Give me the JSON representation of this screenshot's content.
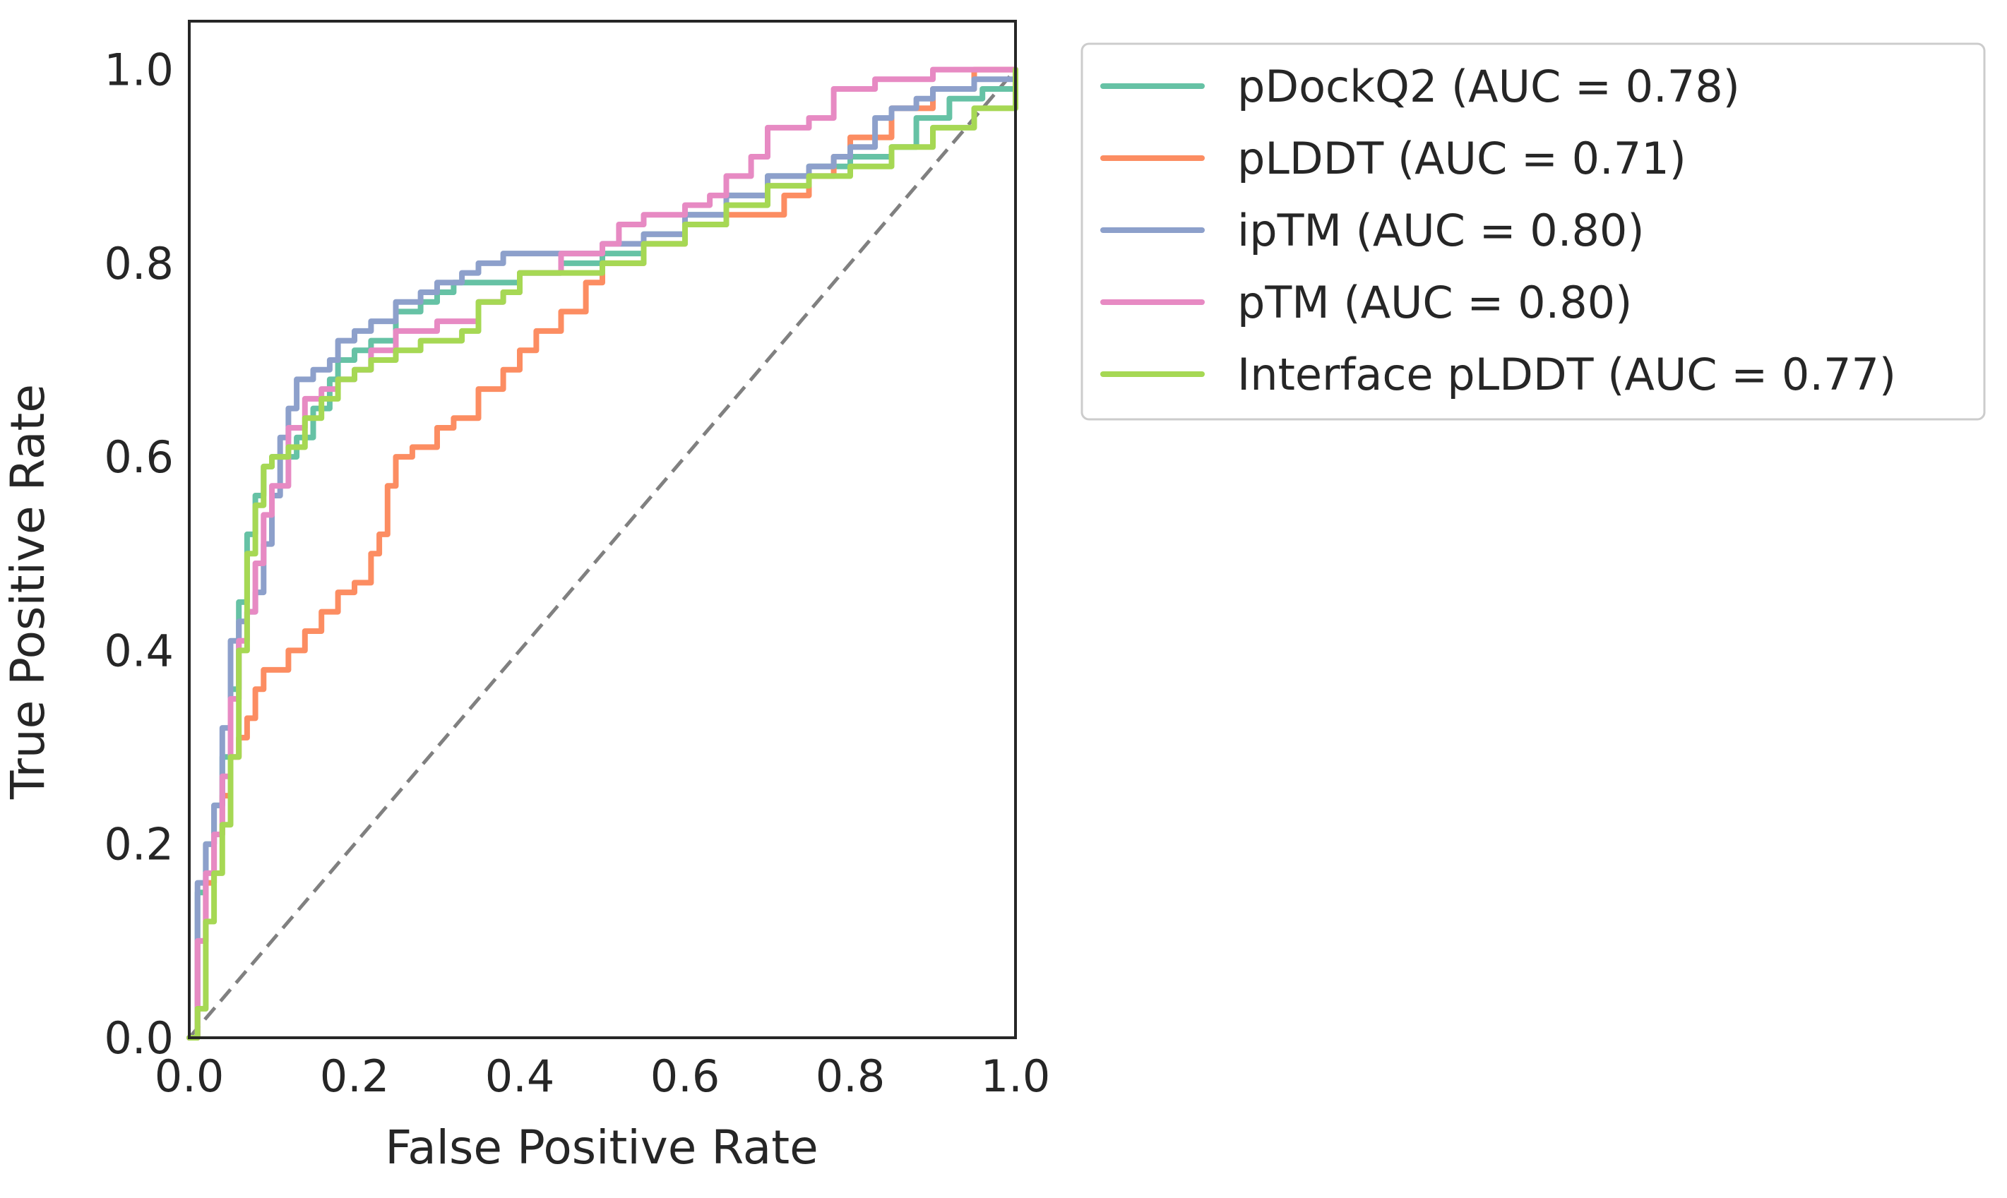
{
  "chart_data": {
    "type": "line",
    "title": "",
    "xlabel": "False Positive Rate",
    "ylabel": "True Positive Rate",
    "xlim": [
      0.0,
      1.0
    ],
    "ylim": [
      0.0,
      1.05
    ],
    "xticks": [
      "0.0",
      "0.2",
      "0.4",
      "0.6",
      "0.8",
      "1.0"
    ],
    "yticks": [
      "0.0",
      "0.2",
      "0.4",
      "0.6",
      "0.8",
      "1.0"
    ],
    "grid": false,
    "legend_position": "outside-top-right",
    "reference_line": {
      "style": "dashed",
      "color": "#808080",
      "x": [
        0.0,
        1.0
      ],
      "y": [
        0.0,
        1.0
      ]
    },
    "series": [
      {
        "name": "pDockQ2 (AUC = 0.78)",
        "color": "#66c2a5",
        "x": [
          0.0,
          0.01,
          0.02,
          0.03,
          0.04,
          0.05,
          0.06,
          0.07,
          0.08,
          0.09,
          0.1,
          0.12,
          0.13,
          0.15,
          0.17,
          0.18,
          0.2,
          0.22,
          0.25,
          0.28,
          0.3,
          0.32,
          0.35,
          0.4,
          0.45,
          0.5,
          0.55,
          0.6,
          0.65,
          0.7,
          0.75,
          0.8,
          0.85,
          0.88,
          0.92,
          0.96,
          1.0
        ],
        "y": [
          0.0,
          0.15,
          0.2,
          0.24,
          0.29,
          0.36,
          0.45,
          0.52,
          0.56,
          0.59,
          0.6,
          0.6,
          0.62,
          0.65,
          0.68,
          0.7,
          0.71,
          0.72,
          0.75,
          0.76,
          0.77,
          0.78,
          0.78,
          0.79,
          0.8,
          0.81,
          0.83,
          0.85,
          0.87,
          0.89,
          0.9,
          0.91,
          0.92,
          0.95,
          0.97,
          0.98,
          1.0
        ]
      },
      {
        "name": "pLDDT (AUC = 0.71)",
        "color": "#fc8d62",
        "x": [
          0.0,
          0.01,
          0.02,
          0.03,
          0.04,
          0.05,
          0.06,
          0.07,
          0.08,
          0.09,
          0.1,
          0.12,
          0.14,
          0.16,
          0.18,
          0.2,
          0.22,
          0.23,
          0.24,
          0.25,
          0.27,
          0.3,
          0.32,
          0.35,
          0.38,
          0.4,
          0.42,
          0.45,
          0.48,
          0.5,
          0.55,
          0.6,
          0.65,
          0.7,
          0.72,
          0.75,
          0.78,
          0.8,
          0.85,
          0.9,
          0.95,
          1.0
        ],
        "y": [
          0.0,
          0.1,
          0.16,
          0.21,
          0.25,
          0.29,
          0.31,
          0.33,
          0.36,
          0.38,
          0.38,
          0.4,
          0.42,
          0.44,
          0.46,
          0.47,
          0.5,
          0.52,
          0.57,
          0.6,
          0.61,
          0.63,
          0.64,
          0.67,
          0.69,
          0.71,
          0.73,
          0.75,
          0.78,
          0.8,
          0.82,
          0.84,
          0.85,
          0.85,
          0.87,
          0.89,
          0.91,
          0.93,
          0.96,
          0.98,
          1.0,
          1.0
        ]
      },
      {
        "name": "ipTM (AUC = 0.80)",
        "color": "#8da0cb",
        "x": [
          0.0,
          0.01,
          0.02,
          0.03,
          0.04,
          0.05,
          0.06,
          0.07,
          0.08,
          0.09,
          0.1,
          0.11,
          0.12,
          0.13,
          0.15,
          0.17,
          0.18,
          0.2,
          0.22,
          0.25,
          0.28,
          0.3,
          0.33,
          0.35,
          0.38,
          0.4,
          0.45,
          0.5,
          0.55,
          0.6,
          0.65,
          0.7,
          0.75,
          0.78,
          0.8,
          0.83,
          0.85,
          0.88,
          0.9,
          0.95,
          1.0
        ],
        "y": [
          0.0,
          0.16,
          0.2,
          0.24,
          0.32,
          0.41,
          0.43,
          0.44,
          0.46,
          0.51,
          0.56,
          0.62,
          0.65,
          0.68,
          0.69,
          0.7,
          0.72,
          0.73,
          0.74,
          0.76,
          0.77,
          0.78,
          0.79,
          0.8,
          0.81,
          0.81,
          0.81,
          0.82,
          0.83,
          0.85,
          0.87,
          0.89,
          0.9,
          0.91,
          0.92,
          0.95,
          0.96,
          0.97,
          0.98,
          0.99,
          1.0
        ]
      },
      {
        "name": "pTM (AUC = 0.80)",
        "color": "#e78ac3",
        "x": [
          0.0,
          0.01,
          0.02,
          0.03,
          0.04,
          0.05,
          0.06,
          0.07,
          0.08,
          0.09,
          0.1,
          0.12,
          0.14,
          0.16,
          0.18,
          0.2,
          0.22,
          0.25,
          0.3,
          0.35,
          0.38,
          0.4,
          0.45,
          0.5,
          0.52,
          0.55,
          0.6,
          0.63,
          0.65,
          0.68,
          0.7,
          0.75,
          0.78,
          0.8,
          0.83,
          0.86,
          0.88,
          0.9,
          0.95,
          1.0
        ],
        "y": [
          0.0,
          0.1,
          0.17,
          0.21,
          0.27,
          0.35,
          0.41,
          0.44,
          0.49,
          0.54,
          0.57,
          0.63,
          0.66,
          0.67,
          0.68,
          0.69,
          0.71,
          0.73,
          0.74,
          0.76,
          0.77,
          0.79,
          0.81,
          0.82,
          0.84,
          0.85,
          0.86,
          0.87,
          0.89,
          0.91,
          0.94,
          0.95,
          0.98,
          0.98,
          0.99,
          0.99,
          0.99,
          1.0,
          1.0,
          1.0
        ]
      },
      {
        "name": "Interface pLDDT (AUC = 0.77)",
        "color": "#a6d854",
        "x": [
          0.0,
          0.01,
          0.02,
          0.03,
          0.04,
          0.05,
          0.06,
          0.07,
          0.08,
          0.09,
          0.1,
          0.12,
          0.14,
          0.16,
          0.18,
          0.2,
          0.22,
          0.25,
          0.28,
          0.3,
          0.33,
          0.35,
          0.38,
          0.4,
          0.45,
          0.5,
          0.55,
          0.6,
          0.65,
          0.7,
          0.75,
          0.8,
          0.85,
          0.9,
          0.95,
          1.0
        ],
        "y": [
          0.0,
          0.03,
          0.12,
          0.17,
          0.22,
          0.29,
          0.4,
          0.5,
          0.55,
          0.59,
          0.6,
          0.61,
          0.64,
          0.66,
          0.68,
          0.69,
          0.7,
          0.71,
          0.72,
          0.72,
          0.73,
          0.76,
          0.77,
          0.79,
          0.79,
          0.8,
          0.82,
          0.84,
          0.86,
          0.88,
          0.89,
          0.9,
          0.92,
          0.94,
          0.96,
          1.0
        ]
      }
    ]
  }
}
